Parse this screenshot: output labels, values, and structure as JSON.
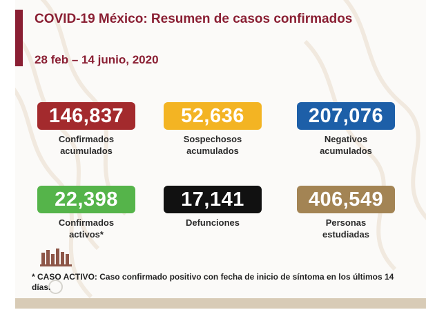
{
  "title": "COVID-19 México: Resumen de casos confirmados",
  "date_range": "28 feb – 14 junio, 2020",
  "colors": {
    "brand": "#8a1f33",
    "confirmados": "#a32a2d",
    "sospechosos": "#f3b423",
    "negativos": "#1d5fa8",
    "activos": "#55b44a",
    "defunciones": "#111111",
    "estudiadas": "#a38454"
  },
  "stats": [
    {
      "value": "146,837",
      "label": "Confirmados\nacumulados"
    },
    {
      "value": "52,636",
      "label": "Sospechosos\nacumulados"
    },
    {
      "value": "207,076",
      "label": "Negativos\nacumulados"
    },
    {
      "value": "22,398",
      "label": "Confirmados\nactivos*"
    },
    {
      "value": "17,141",
      "label": "Defunciones"
    },
    {
      "value": "406,549",
      "label": "Personas\nestudiadas"
    }
  ],
  "footnote": "* CASO ACTIVO: Caso confirmado positivo con fecha de inicio de síntoma en los últimos 14 días.",
  "icons": [
    "institutional-seal-icon",
    "circle-mark-icon"
  ]
}
